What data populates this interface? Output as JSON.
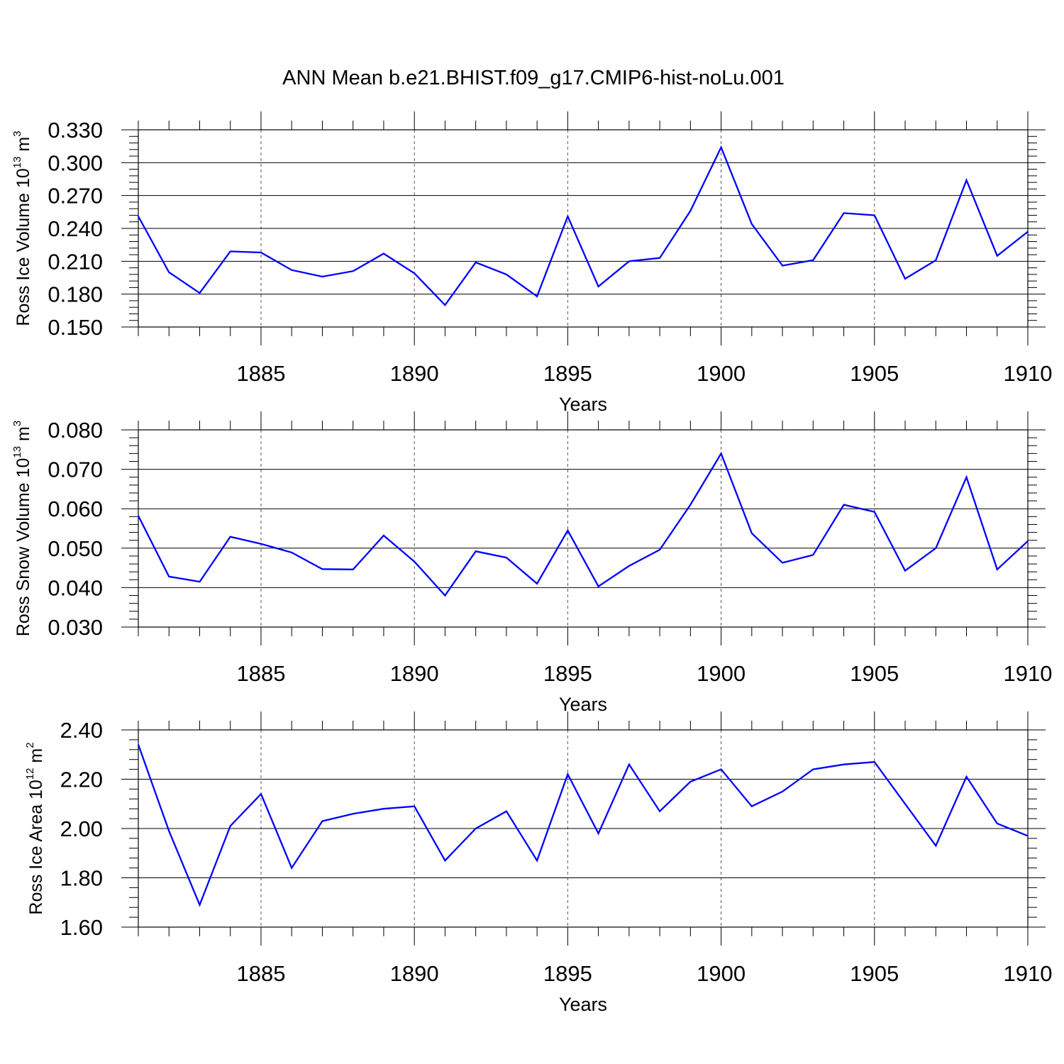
{
  "title": "ANN Mean b.e21.BHIST.f09_g17.CMIP6-hist-noLu.001",
  "chart_data": [
    {
      "type": "line",
      "title": "ANN Mean b.e21.BHIST.f09_g17.CMIP6-hist-noLu.001",
      "xlabel": "Years",
      "ylabel_main": "Ross Ice Volume 10",
      "ylabel_exp": "13",
      "ylabel_unit": " m",
      "ylabel_unit_exp": "3",
      "xlim": [
        1881,
        1910
      ],
      "ylim": [
        0.15,
        0.33
      ],
      "yticks": [
        0.15,
        0.18,
        0.21,
        0.24,
        0.27,
        0.3,
        0.33
      ],
      "ytick_labels": [
        "0.150",
        "0.180",
        "0.210",
        "0.240",
        "0.270",
        "0.300",
        "0.330"
      ],
      "xticks": [
        1885,
        1890,
        1895,
        1900,
        1905,
        1910
      ],
      "xtick_labels": [
        "1885",
        "1890",
        "1895",
        "1900",
        "1905",
        "1910"
      ],
      "color": "#0000ff",
      "x": [
        1881,
        1882,
        1883,
        1884,
        1885,
        1886,
        1887,
        1888,
        1889,
        1890,
        1891,
        1892,
        1893,
        1894,
        1895,
        1896,
        1897,
        1898,
        1899,
        1900,
        1901,
        1902,
        1903,
        1904,
        1905,
        1906,
        1907,
        1908,
        1909,
        1910
      ],
      "values": [
        0.251,
        0.2,
        0.181,
        0.219,
        0.218,
        0.202,
        0.196,
        0.201,
        0.217,
        0.199,
        0.17,
        0.209,
        0.198,
        0.178,
        0.251,
        0.187,
        0.21,
        0.213,
        0.256,
        0.314,
        0.244,
        0.206,
        0.211,
        0.254,
        0.252,
        0.194,
        0.211,
        0.284,
        0.215,
        0.237
      ]
    },
    {
      "type": "line",
      "xlabel": "Years",
      "ylabel_main": "Ross Snow Volume 10",
      "ylabel_exp": "13",
      "ylabel_unit": " m",
      "ylabel_unit_exp": "3",
      "xlim": [
        1881,
        1910
      ],
      "ylim": [
        0.03,
        0.08
      ],
      "yticks": [
        0.03,
        0.04,
        0.05,
        0.06,
        0.07,
        0.08
      ],
      "ytick_labels": [
        "0.030",
        "0.040",
        "0.050",
        "0.060",
        "0.070",
        "0.080"
      ],
      "xticks": [
        1885,
        1890,
        1895,
        1900,
        1905,
        1910
      ],
      "xtick_labels": [
        "1885",
        "1890",
        "1895",
        "1900",
        "1905",
        "1910"
      ],
      "color": "#0000ff",
      "x": [
        1881,
        1882,
        1883,
        1884,
        1885,
        1886,
        1887,
        1888,
        1889,
        1890,
        1891,
        1892,
        1893,
        1894,
        1895,
        1896,
        1897,
        1898,
        1899,
        1900,
        1901,
        1902,
        1903,
        1904,
        1905,
        1906,
        1907,
        1908,
        1909,
        1910
      ],
      "values": [
        0.0582,
        0.0428,
        0.0415,
        0.0529,
        0.0511,
        0.0489,
        0.0447,
        0.0446,
        0.0532,
        0.0466,
        0.038,
        0.0492,
        0.0476,
        0.041,
        0.0545,
        0.0403,
        0.0455,
        0.0496,
        0.061,
        0.074,
        0.0538,
        0.0463,
        0.0483,
        0.061,
        0.0592,
        0.0443,
        0.05,
        0.068,
        0.0446,
        0.0518
      ]
    },
    {
      "type": "line",
      "xlabel": "Years",
      "ylabel_main": "Ross Ice Area 10",
      "ylabel_exp": "12",
      "ylabel_unit": " m",
      "ylabel_unit_exp": "2",
      "xlim": [
        1881,
        1910
      ],
      "ylim": [
        1.6,
        2.4
      ],
      "yticks": [
        1.6,
        1.8,
        2.0,
        2.2,
        2.4
      ],
      "ytick_labels": [
        "1.60",
        "1.80",
        "2.00",
        "2.20",
        "2.40"
      ],
      "xticks": [
        1885,
        1890,
        1895,
        1900,
        1905,
        1910
      ],
      "xtick_labels": [
        "1885",
        "1890",
        "1895",
        "1900",
        "1905",
        "1910"
      ],
      "color": "#0000ff",
      "x": [
        1881,
        1882,
        1883,
        1884,
        1885,
        1886,
        1887,
        1888,
        1889,
        1890,
        1891,
        1892,
        1893,
        1894,
        1895,
        1896,
        1897,
        1898,
        1899,
        1900,
        1901,
        1902,
        1903,
        1904,
        1905,
        1906,
        1907,
        1908,
        1909,
        1910
      ],
      "values": [
        2.34,
        1.99,
        1.69,
        2.01,
        2.14,
        1.84,
        2.03,
        2.06,
        2.08,
        2.09,
        1.87,
        2.0,
        2.07,
        1.87,
        2.22,
        1.98,
        2.26,
        2.07,
        2.19,
        2.24,
        2.09,
        2.15,
        2.24,
        2.26,
        2.27,
        2.1,
        1.93,
        2.21,
        2.02,
        1.97
      ]
    }
  ]
}
